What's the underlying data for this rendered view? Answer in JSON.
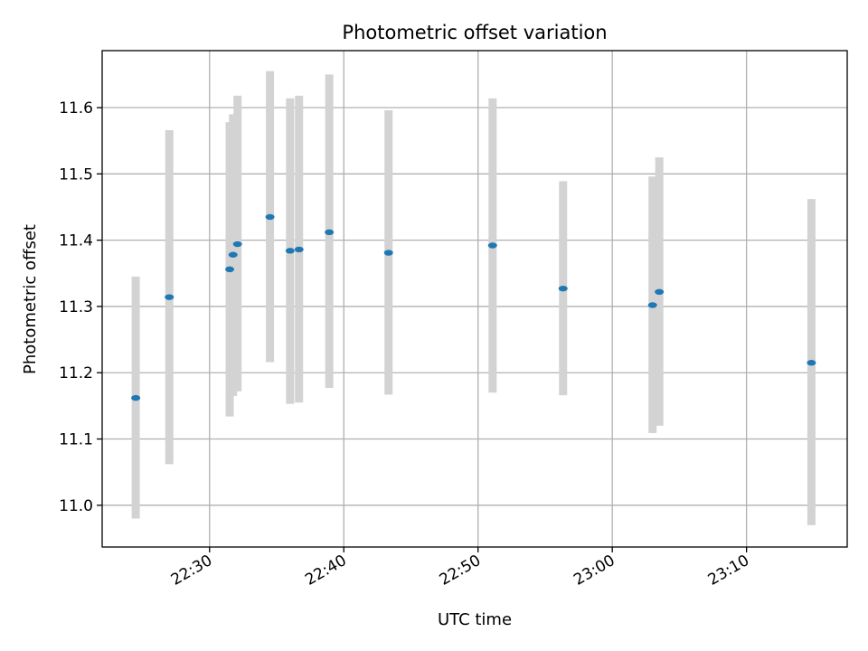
{
  "chart_data": {
    "type": "scatter",
    "title": "Photometric offset variation",
    "xlabel": "UTC time",
    "ylabel": "Photometric offset",
    "grid": true,
    "xlim": [
      "22:22:00",
      "23:17:30"
    ],
    "ylim": [
      10.937,
      11.686
    ],
    "x_ticks": [
      "22:30",
      "22:40",
      "22:50",
      "23:00",
      "23:10"
    ],
    "y_ticks": [
      11.0,
      11.1,
      11.2,
      11.3,
      11.4,
      11.5,
      11.6
    ],
    "colors": {
      "points": "#1f77b4",
      "error_bars": "#d3d3d3"
    },
    "points": [
      {
        "x": "22:24:30",
        "y": 11.162,
        "lo": 10.98,
        "hi": 11.345
      },
      {
        "x": "22:27:00",
        "y": 11.314,
        "lo": 11.062,
        "hi": 11.566
      },
      {
        "x": "22:31:30",
        "y": 11.356,
        "lo": 11.134,
        "hi": 11.578
      },
      {
        "x": "22:31:45",
        "y": 11.378,
        "lo": 11.165,
        "hi": 11.59
      },
      {
        "x": "22:32:05",
        "y": 11.394,
        "lo": 11.172,
        "hi": 11.618
      },
      {
        "x": "22:34:30",
        "y": 11.435,
        "lo": 11.216,
        "hi": 11.655
      },
      {
        "x": "22:36:00",
        "y": 11.384,
        "lo": 11.153,
        "hi": 11.614
      },
      {
        "x": "22:36:40",
        "y": 11.386,
        "lo": 11.155,
        "hi": 11.618
      },
      {
        "x": "22:38:55",
        "y": 11.412,
        "lo": 11.177,
        "hi": 11.65
      },
      {
        "x": "22:43:20",
        "y": 11.381,
        "lo": 11.167,
        "hi": 11.596
      },
      {
        "x": "22:51:05",
        "y": 11.392,
        "lo": 11.17,
        "hi": 11.614
      },
      {
        "x": "22:56:20",
        "y": 11.327,
        "lo": 11.166,
        "hi": 11.489
      },
      {
        "x": "23:03:00",
        "y": 11.302,
        "lo": 11.109,
        "hi": 11.496
      },
      {
        "x": "23:03:30",
        "y": 11.322,
        "lo": 11.12,
        "hi": 11.525
      },
      {
        "x": "23:14:50",
        "y": 11.215,
        "lo": 10.97,
        "hi": 11.462
      }
    ]
  }
}
